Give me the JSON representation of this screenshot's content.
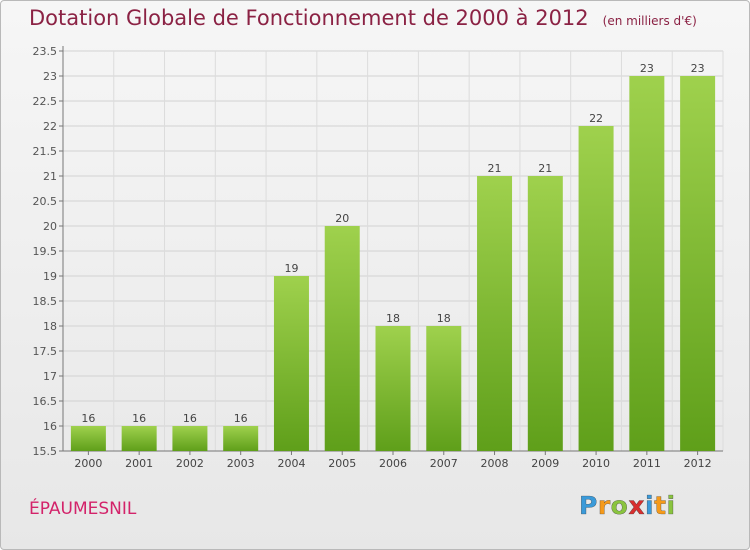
{
  "title": "Dotation Globale de Fonctionnement de 2000 à 2012",
  "unit": "(en milliers d'€)",
  "commune": "ÉPAUMESNIL",
  "logo": {
    "letters": [
      "P",
      "r",
      "o",
      "x",
      "i",
      "t",
      "i"
    ],
    "colors": [
      "#3a9ad9",
      "#f59a1a",
      "#8ac43f",
      "#d82f2f",
      "#3a9ad9",
      "#f59a1a",
      "#8ac43f"
    ]
  },
  "colors": {
    "bar_top": "#9fd14d",
    "bar_bottom": "#5f9f1a",
    "title": "#8b2244",
    "commune": "#d3236a"
  },
  "chart_data": {
    "type": "bar",
    "categories": [
      "2000",
      "2001",
      "2002",
      "2003",
      "2004",
      "2005",
      "2006",
      "2007",
      "2008",
      "2009",
      "2010",
      "2011",
      "2012"
    ],
    "values": [
      16,
      16,
      16,
      16,
      19,
      20,
      18,
      18,
      21,
      21,
      22,
      23,
      23
    ],
    "ylim": [
      15.5,
      23.5
    ],
    "yticks": [
      "15.5",
      "16",
      "16.5",
      "17",
      "17.5",
      "18",
      "18.5",
      "19",
      "19.5",
      "20",
      "20.5",
      "21",
      "21.5",
      "22",
      "22.5",
      "23",
      "23.5"
    ],
    "grid": true
  }
}
